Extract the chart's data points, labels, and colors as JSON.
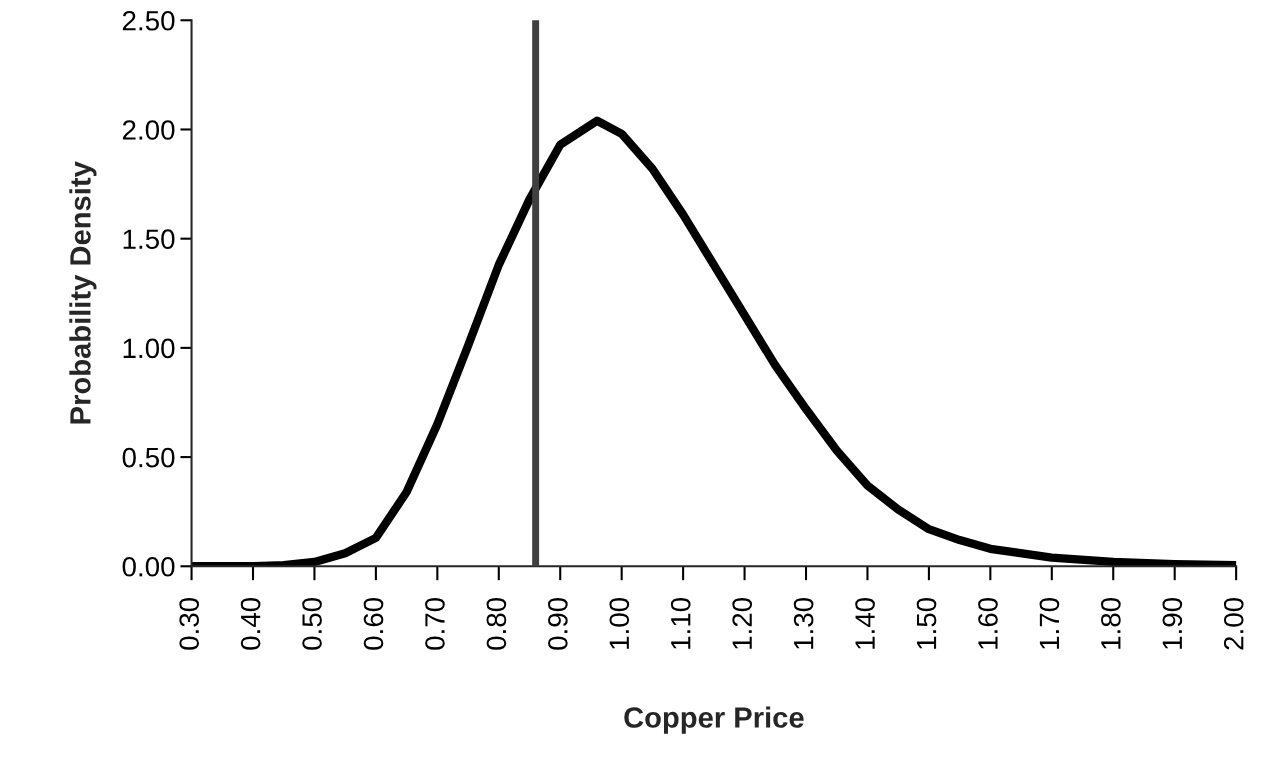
{
  "chart_data": {
    "type": "line",
    "xlabel": "Copper Price",
    "ylabel": "Probability Density",
    "x": [
      0.3,
      0.4,
      0.45,
      0.5,
      0.55,
      0.6,
      0.65,
      0.7,
      0.75,
      0.8,
      0.85,
      0.9,
      0.96,
      1.0,
      1.05,
      1.1,
      1.15,
      1.2,
      1.25,
      1.3,
      1.35,
      1.4,
      1.45,
      1.5,
      1.55,
      1.6,
      1.7,
      1.8,
      1.9,
      2.0
    ],
    "series": [
      {
        "color": "#000000",
        "values": [
          0,
          0,
          0.005,
          0.02,
          0.06,
          0.13,
          0.34,
          0.65,
          1.01,
          1.38,
          1.68,
          1.93,
          2.04,
          1.98,
          1.82,
          1.61,
          1.38,
          1.15,
          0.92,
          0.72,
          0.53,
          0.37,
          0.26,
          0.17,
          0.12,
          0.08,
          0.04,
          0.02,
          0.01,
          0.005
        ]
      }
    ],
    "xlim": [
      0.3,
      2.0
    ],
    "xticks": [
      {
        "value": 0.3,
        "label": "0.30"
      },
      {
        "value": 0.4,
        "label": "0.40"
      },
      {
        "value": 0.5,
        "label": "0.50"
      },
      {
        "value": 0.6,
        "label": "0.60"
      },
      {
        "value": 0.7,
        "label": "0.70"
      },
      {
        "value": 0.8,
        "label": "0.80"
      },
      {
        "value": 0.9,
        "label": "0.90"
      },
      {
        "value": 1.0,
        "label": "1.00"
      },
      {
        "value": 1.1,
        "label": "1.10"
      },
      {
        "value": 1.2,
        "label": "1.20"
      },
      {
        "value": 1.3,
        "label": "1.30"
      },
      {
        "value": 1.4,
        "label": "1.40"
      },
      {
        "value": 1.5,
        "label": "1.50"
      },
      {
        "value": 1.6,
        "label": "1.60"
      },
      {
        "value": 1.7,
        "label": "1.70"
      },
      {
        "value": 1.8,
        "label": "1.80"
      },
      {
        "value": 1.9,
        "label": "1.90"
      },
      {
        "value": 2.0,
        "label": "2.00"
      }
    ],
    "ylim": [
      0,
      2.5
    ],
    "yticks": [
      {
        "value": 0,
        "label": "0.00"
      },
      {
        "value": 0.5,
        "label": "0.50"
      },
      {
        "value": 1.0,
        "label": "1.00"
      },
      {
        "value": 1.5,
        "label": "1.50"
      },
      {
        "value": 2.0,
        "label": "2.00"
      },
      {
        "value": 2.5,
        "label": "2.50"
      }
    ],
    "ref_lines": [
      {
        "axis": "x",
        "value": 0.86,
        "color": "#404040"
      }
    ],
    "grid": false,
    "legend": false,
    "marker": "none",
    "line_style": "solid"
  }
}
